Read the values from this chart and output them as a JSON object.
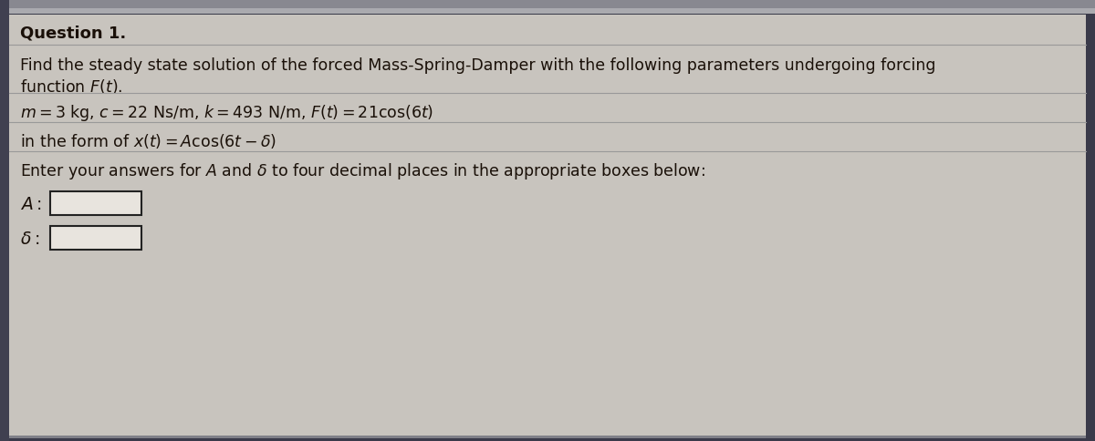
{
  "bg_outer": "#3a3a4a",
  "bg_panel": "#c8c4be",
  "top_bar_color": "#888890",
  "top_bar2_color": "#aaaaaf",
  "left_bar_color": "#404050",
  "text_color": "#1a1008",
  "title": "Question 1.",
  "line1": "Find the steady state solution of the forced Mass-Spring-Damper with the following parameters undergoing forcing",
  "line2": "function $F(t)$.",
  "params_line": "$m=3$ kg, $c=22$ Ns/m, $k=493$ N/m, $F(t)=21\\cos(6t)$",
  "form_line": "in the form of $x(t)=A\\cos(6t-\\delta)$",
  "enter_line": "Enter your answers for $A$ and $\\delta$ to four decimal places in the appropriate boxes below:",
  "label_A": "$A:$",
  "label_delta": "$\\delta:$",
  "box_color": "#e8e4de",
  "box_border_color": "#222222",
  "title_fontsize": 13,
  "body_fontsize": 12.5
}
